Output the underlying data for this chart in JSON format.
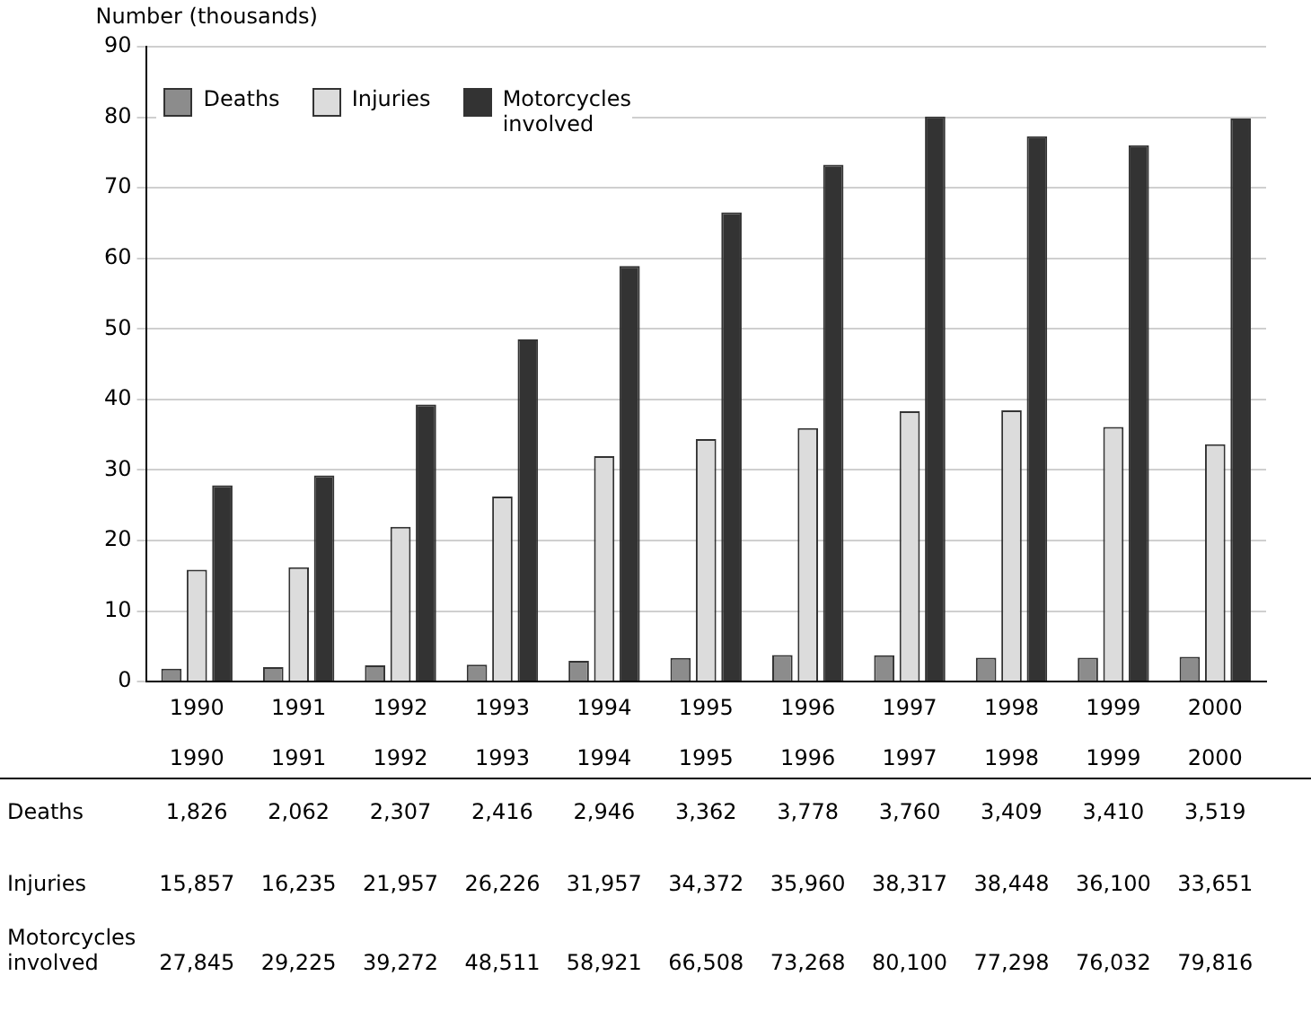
{
  "chart_data": [
    {
      "type": "bar",
      "ylabel": "Number (thousands)",
      "categories": [
        "1990",
        "1991",
        "1992",
        "1993",
        "1994",
        "1995",
        "1996",
        "1997",
        "1998",
        "1999",
        "2000"
      ],
      "series": [
        {
          "name": "Deaths",
          "color": "#8c8c8c",
          "values": [
            1.826,
            2.062,
            2.307,
            2.416,
            2.946,
            3.362,
            3.778,
            3.76,
            3.409,
            3.41,
            3.519
          ]
        },
        {
          "name": "Injuries",
          "color": "#dcdcdc",
          "values": [
            15.857,
            16.235,
            21.957,
            26.226,
            31.957,
            34.372,
            35.96,
            38.317,
            38.448,
            36.1,
            33.651
          ]
        },
        {
          "name": "Motorcycles involved",
          "color": "#333333",
          "values": [
            27.845,
            29.225,
            39.272,
            48.511,
            58.921,
            66.508,
            73.268,
            80.1,
            77.298,
            76.032,
            79.816
          ]
        }
      ],
      "ylim": [
        0,
        90
      ],
      "yticks": [
        0,
        10,
        20,
        30,
        40,
        50,
        60,
        70,
        80,
        90
      ],
      "grid": "y",
      "legend": "top left"
    },
    {
      "type": "heatmap",
      "categories": [
        "1990",
        "1991",
        "1992",
        "1993",
        "1994",
        "1995",
        "1996",
        "1997",
        "1998",
        "1999",
        "2000"
      ],
      "y_categories": [
        "Deaths",
        "Injuries",
        "Motorcycles involved"
      ],
      "cells": [
        [
          1826,
          2062,
          2307,
          2416,
          2946,
          3362,
          3778,
          3760,
          3409,
          3410,
          3519
        ],
        [
          15857,
          16235,
          21957,
          26226,
          31957,
          34372,
          35960,
          38317,
          38448,
          36100,
          33651
        ],
        [
          27845,
          29225,
          39272,
          48511,
          58921,
          66508,
          73268,
          80100,
          77298,
          76032,
          79816
        ]
      ],
      "cell_labels": [
        [
          "1,826",
          "2,062",
          "2,307",
          "2,416",
          "2,946",
          "3,362",
          "3,778",
          "3,760",
          "3,409",
          "3,410",
          "3,519"
        ],
        [
          "15,857",
          "16,235",
          "21,957",
          "26,226",
          "31,957",
          "34,372",
          "35,960",
          "38,317",
          "38,448",
          "36,100",
          "33,651"
        ],
        [
          "27,845",
          "29,225",
          "39,272",
          "48,511",
          "58,921",
          "66,508",
          "73,268",
          "80,100",
          "77,298",
          "76,032",
          "79,816"
        ]
      ]
    }
  ]
}
